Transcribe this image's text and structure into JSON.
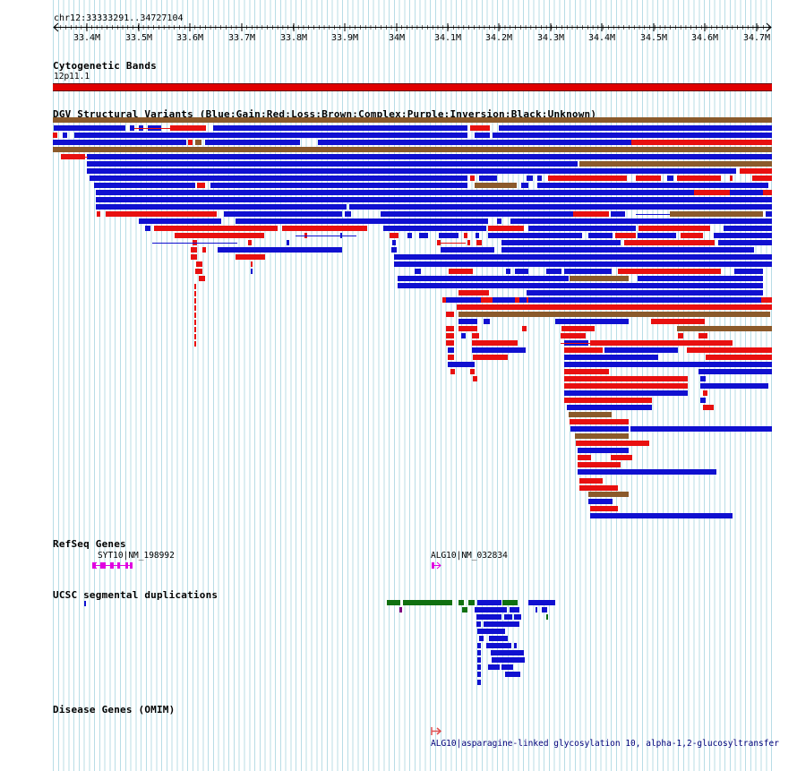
{
  "locus": "chr12:33333291..34727104",
  "ruler": {
    "ticks": [
      "33.4M",
      "33.5M",
      "33.6M",
      "33.7M",
      "33.8M",
      "33.9M",
      "34M",
      "34.1M",
      "34.2M",
      "34.3M",
      "34.4M",
      "34.5M",
      "34.6M",
      "34.7M"
    ]
  },
  "tracks": {
    "cytoband": {
      "title": "Cytogenetic Bands",
      "band": "12p11.1",
      "color": "#e00000"
    },
    "dgv": {
      "title": "DGV Structural Variants (Blue:Gain;Red:Loss;Brown:Complex;Purple:Inversion;Black:Unknown)",
      "colors": {
        "gain": "#1010d0",
        "loss": "#e81010",
        "complex": "#8b5a2b",
        "inversion": "#800080",
        "unknown": "#000000"
      }
    },
    "refseq": {
      "title": "RefSeq Genes",
      "genes": [
        {
          "label": "SYT10|NM_198992",
          "color": "#e000e0"
        },
        {
          "label": "ALG10|NM_032834",
          "color": "#e000e0"
        }
      ]
    },
    "segdup": {
      "title": "UCSC segmental duplications",
      "colors": {
        "high": "#1010d0",
        "mid": "#107010",
        "low": "#800080"
      }
    },
    "omim": {
      "title": "Disease Genes (OMIM)",
      "entry": "ALG10|asparagine-linked glycosylation 10, alpha-1,2-glucosyltransfer",
      "color": "#e05050"
    }
  }
}
